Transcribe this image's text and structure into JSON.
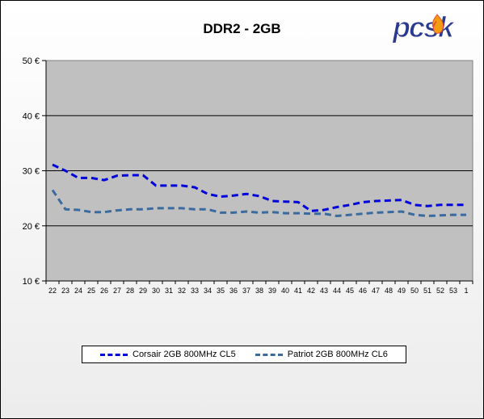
{
  "chart_data": {
    "type": "line",
    "title": "DDR2 - 2GB",
    "categories": [
      "22",
      "23",
      "24",
      "25",
      "26",
      "27",
      "28",
      "29",
      "30",
      "31",
      "32",
      "33",
      "34",
      "35",
      "36",
      "37",
      "38",
      "39",
      "40",
      "41",
      "42",
      "43",
      "44",
      "45",
      "46",
      "47",
      "48",
      "49",
      "50",
      "51",
      "52",
      "53",
      "1"
    ],
    "y_ticks": [
      "10 €",
      "20 €",
      "30 €",
      "40 €",
      "50 €"
    ],
    "ylim": [
      10,
      50
    ],
    "grid": true,
    "legend_position": "bottom",
    "series": [
      {
        "name": "Corsair 2GB 800MHz CL5",
        "color": "#0000dd",
        "values": [
          31.1,
          30.0,
          28.7,
          28.7,
          28.3,
          29.1,
          29.2,
          29.2,
          27.3,
          27.3,
          27.3,
          27.0,
          25.8,
          25.3,
          25.5,
          25.8,
          25.4,
          24.5,
          24.4,
          24.3,
          22.7,
          22.9,
          23.4,
          23.8,
          24.3,
          24.5,
          24.6,
          24.7,
          23.8,
          23.6,
          23.8,
          23.8,
          23.8
        ]
      },
      {
        "name": "Patriot 2GB 800MHz CL6",
        "color": "#3a6a9e",
        "values": [
          26.5,
          23.0,
          22.9,
          22.5,
          22.5,
          22.8,
          23.0,
          23.0,
          23.2,
          23.2,
          23.2,
          23.0,
          23.0,
          22.4,
          22.4,
          22.6,
          22.4,
          22.5,
          22.3,
          22.3,
          22.2,
          22.2,
          21.8,
          22.0,
          22.2,
          22.4,
          22.5,
          22.6,
          22.0,
          21.8,
          21.9,
          22.0,
          22.0
        ]
      }
    ]
  },
  "logo": {
    "text": "pcsk",
    "name": "pcsk-logo",
    "color": "#2a3a8f",
    "flame_color": "#f39c12"
  },
  "colors": {
    "plot_bg": "#c0c0c0",
    "gridline": "#000000",
    "frame_bg": "#ffffff"
  }
}
